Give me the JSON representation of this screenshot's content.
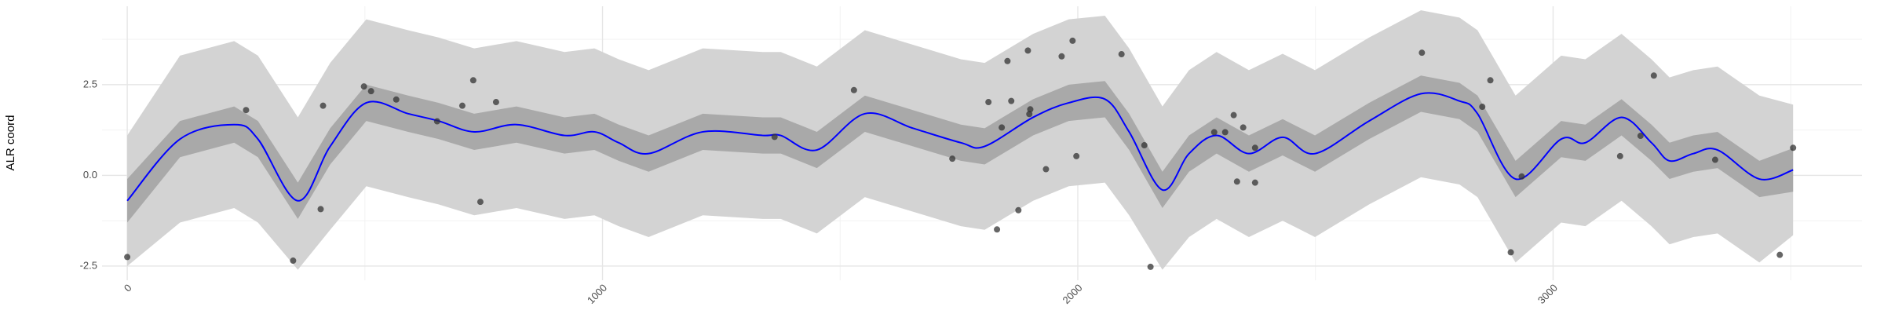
{
  "chart_data": {
    "type": "scatter",
    "y_label": "ALR coord",
    "xlim": [
      -53,
      3650
    ],
    "ylim": [
      -2.89,
      4.66
    ],
    "xticks": [
      0,
      1000,
      2000,
      3000
    ],
    "yticks": [
      -2.5,
      {
        "value": 0,
        "label": "0.0"
      },
      2.5
    ],
    "x_minor_grid": [
      500,
      1500,
      2500,
      3500
    ],
    "y_minor_grid": [
      -1.25,
      1.25,
      3.75
    ],
    "grid": true,
    "points": {
      "color": "#333333",
      "x": [
        0,
        250,
        349,
        407,
        412,
        498,
        513,
        566,
        652,
        705,
        728,
        743,
        776,
        1362,
        1529,
        1736,
        1812,
        1830,
        1840,
        1852,
        1860,
        1875,
        1895,
        1898,
        1900,
        1933,
        1966,
        1989,
        1997,
        2092,
        2140,
        2153,
        2287,
        2310,
        2328,
        2335,
        2348,
        2373,
        2373,
        2724,
        2851,
        2868,
        2911,
        2934,
        3141,
        3184,
        3212,
        3341,
        3477,
        3505
      ],
      "values": [
        -2.25,
        1.8,
        -2.35,
        -0.93,
        1.92,
        2.45,
        2.32,
        2.09,
        1.49,
        1.92,
        2.62,
        -0.73,
        2.02,
        1.06,
        2.35,
        0.46,
        2.02,
        -1.49,
        1.32,
        3.15,
        2.05,
        -0.96,
        3.44,
        1.69,
        1.82,
        0.17,
        3.28,
        3.71,
        0.53,
        3.34,
        0.83,
        -2.52,
        1.19,
        1.19,
        1.66,
        -0.17,
        1.32,
        0.76,
        -0.2,
        3.38,
        1.89,
        2.62,
        -2.12,
        -0.03,
        0.53,
        1.09,
        2.75,
        0.43,
        -2.19,
        0.76
      ]
    },
    "smooth": {
      "color": "#0000ff",
      "x": [
        0,
        111,
        225,
        275,
        359,
        427,
        503,
        591,
        655,
        730,
        819,
        920,
        983,
        1034,
        1097,
        1211,
        1337,
        1375,
        1451,
        1552,
        1653,
        1754,
        1804,
        1906,
        1981,
        2057,
        2108,
        2178,
        2234,
        2292,
        2360,
        2431,
        2499,
        2613,
        2722,
        2803,
        2841,
        2921,
        3017,
        3068,
        3144,
        3207,
        3245,
        3295,
        3346,
        3434,
        3505
      ],
      "values": [
        -0.7,
        1.0,
        1.4,
        1.0,
        -0.7,
        0.8,
        2.0,
        1.7,
        1.5,
        1.2,
        1.4,
        1.1,
        1.2,
        0.9,
        0.6,
        1.2,
        1.1,
        1.1,
        0.7,
        1.7,
        1.3,
        0.9,
        0.8,
        1.6,
        2.0,
        2.1,
        1.2,
        -0.4,
        0.6,
        1.1,
        0.6,
        1.05,
        0.6,
        1.5,
        2.25,
        2.05,
        1.7,
        -0.1,
        1.0,
        0.9,
        1.6,
        0.9,
        0.4,
        0.6,
        0.7,
        -0.1,
        0.15
      ],
      "inner_band": {
        "color": "#a9a9a9",
        "lower": [
          -1.3,
          0.5,
          0.9,
          0.5,
          -1.2,
          0.3,
          1.5,
          1.2,
          1.0,
          0.7,
          0.9,
          0.6,
          0.7,
          0.4,
          0.1,
          0.7,
          0.6,
          0.6,
          0.2,
          1.2,
          0.8,
          0.4,
          0.3,
          1.1,
          1.5,
          1.6,
          0.7,
          -0.9,
          0.1,
          0.6,
          0.1,
          0.55,
          0.1,
          1.0,
          1.75,
          1.55,
          1.2,
          -0.6,
          0.5,
          0.4,
          1.1,
          0.4,
          -0.1,
          0.1,
          0.2,
          -0.6,
          -0.45
        ],
        "upper": [
          -0.1,
          1.5,
          1.9,
          1.5,
          -0.2,
          1.3,
          2.5,
          2.2,
          2.0,
          1.7,
          1.9,
          1.6,
          1.7,
          1.4,
          1.1,
          1.7,
          1.6,
          1.6,
          1.2,
          2.2,
          1.8,
          1.4,
          1.3,
          2.1,
          2.5,
          2.6,
          1.7,
          0.1,
          1.1,
          1.6,
          1.1,
          1.55,
          1.1,
          2.0,
          2.75,
          2.55,
          2.2,
          0.4,
          1.5,
          1.4,
          2.1,
          1.4,
          0.9,
          1.1,
          1.2,
          0.4,
          0.75
        ]
      },
      "outer_band": {
        "color": "#d3d3d3",
        "lower": [
          -2.5,
          -1.3,
          -0.9,
          -1.3,
          -2.6,
          -1.5,
          -0.3,
          -0.6,
          -0.8,
          -1.1,
          -0.9,
          -1.2,
          -1.1,
          -1.4,
          -1.7,
          -1.1,
          -1.2,
          -1.2,
          -1.6,
          -0.6,
          -1.0,
          -1.4,
          -1.5,
          -0.7,
          -0.3,
          -0.2,
          -1.1,
          -2.6,
          -1.7,
          -1.2,
          -1.7,
          -1.25,
          -1.7,
          -0.8,
          -0.05,
          -0.25,
          -0.6,
          -2.4,
          -1.3,
          -1.4,
          -0.7,
          -1.4,
          -1.9,
          -1.7,
          -1.6,
          -2.4,
          -1.65
        ],
        "upper": [
          1.1,
          3.3,
          3.7,
          3.3,
          1.6,
          3.1,
          4.3,
          4.0,
          3.8,
          3.5,
          3.7,
          3.4,
          3.5,
          3.2,
          2.9,
          3.5,
          3.4,
          3.4,
          3.0,
          4.0,
          3.6,
          3.2,
          3.1,
          3.9,
          4.3,
          4.4,
          3.5,
          1.9,
          2.9,
          3.4,
          2.9,
          3.35,
          2.9,
          3.8,
          4.55,
          4.35,
          4.0,
          2.2,
          3.3,
          3.2,
          3.9,
          3.2,
          2.7,
          2.9,
          3.0,
          2.2,
          1.95
        ]
      }
    }
  }
}
